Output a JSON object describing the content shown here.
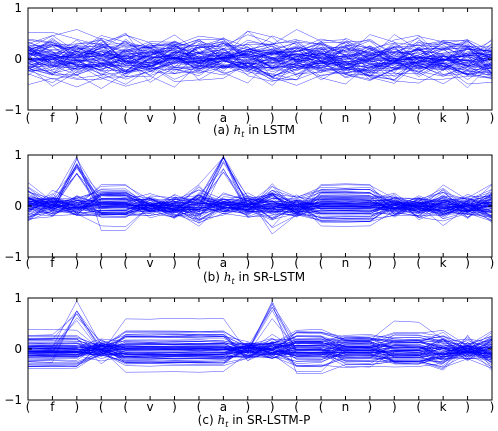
{
  "figure": {
    "panels": [
      {
        "caption_prefix": "(a) ",
        "caption_math": "h",
        "caption_sub": "t",
        "caption_suffix": " in LSTM"
      },
      {
        "caption_prefix": "(b) ",
        "caption_math": "h",
        "caption_sub": "t",
        "caption_suffix": " in SR-LSTM"
      },
      {
        "caption_prefix": "(c) ",
        "caption_math": "h",
        "caption_sub": "t",
        "caption_suffix": " in SR-LSTM-P"
      }
    ]
  },
  "chart_data": [
    {
      "type": "line",
      "title": "(a) h_t in LSTM",
      "x": [
        "(",
        "f",
        ")",
        "(",
        "(",
        "v",
        ")",
        "(",
        "a",
        ")",
        ")",
        "(",
        "(",
        "n",
        ")",
        ")",
        "(",
        "k",
        ")",
        ")"
      ],
      "yticks": [
        -1,
        0,
        1
      ],
      "ylim": [
        -1,
        1
      ],
      "series_color": "#0000ff",
      "series_count": 80,
      "series_note": "many hidden units; values spread broadly between -1 and 1 at every step"
    },
    {
      "type": "line",
      "title": "(b) h_t in SR-LSTM",
      "x": [
        "(",
        "f",
        ")",
        "(",
        "(",
        "v",
        ")",
        "(",
        "a",
        ")",
        ")",
        "(",
        "(",
        "n",
        ")",
        ")",
        "(",
        "k",
        ")",
        ")"
      ],
      "yticks": [
        -1,
        0,
        1
      ],
      "ylim": [
        -1,
        1
      ],
      "series_color": "#0000ff",
      "series_count": 80,
      "series_note": "units stay nearly constant across long spans, converge near 0 at the crossing points"
    },
    {
      "type": "line",
      "title": "(c) h_t in SR-LSTM-P",
      "x": [
        "(",
        "f",
        ")",
        "(",
        "(",
        "v",
        ")",
        "(",
        "a",
        ")",
        ")",
        "(",
        "(",
        "n",
        ")",
        ")",
        "(",
        "k",
        ")",
        ")"
      ],
      "yticks": [
        -1,
        0,
        1
      ],
      "ylim": [
        -1,
        1
      ],
      "series_color": "#0000ff",
      "series_count": 80,
      "series_note": "flat bands most of the time with few crossing points"
    }
  ]
}
